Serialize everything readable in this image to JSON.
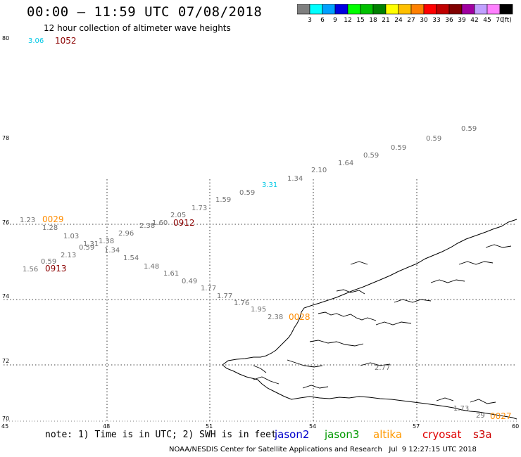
{
  "header": {
    "title": "00:00 – 11:59 UTC 07/08/2018",
    "subtitle": "12 hour collection of altimeter wave heights"
  },
  "colorbar": {
    "colors": [
      "#7f7f7f",
      "#00ffff",
      "#00a0ff",
      "#0000e0",
      "#00ff00",
      "#00c000",
      "#008000",
      "#ffff00",
      "#ffc000",
      "#ff8000",
      "#ff0000",
      "#c00000",
      "#800000",
      "#a000a0",
      "#c0a0ff",
      "#ff80ff",
      "#000000"
    ],
    "labels": [
      "3",
      "6",
      "9",
      "12",
      "15",
      "18",
      "21",
      "24",
      "27",
      "30",
      "33",
      "36",
      "39",
      "42",
      "45",
      "70",
      "(ft)"
    ]
  },
  "axes": {
    "lat_labels": [
      "80",
      "78",
      "76",
      "74",
      "72",
      "70"
    ],
    "lon_labels": [
      "45",
      "48",
      "51",
      "54",
      "57",
      "60"
    ]
  },
  "points": [
    {
      "text": "3.06",
      "color": "#00c8e6"
    },
    {
      "text": "1.23",
      "color": "#707070"
    },
    {
      "text": "1.28",
      "color": "#707070"
    },
    {
      "text": "1.03",
      "color": "#707070"
    },
    {
      "text": "1.31",
      "color": "#707070"
    },
    {
      "text": "0.59",
      "color": "#707070"
    },
    {
      "text": "1.38",
      "color": "#707070"
    },
    {
      "text": "1.34",
      "color": "#707070"
    },
    {
      "text": "2.13",
      "color": "#707070"
    },
    {
      "text": "0.59",
      "color": "#707070"
    },
    {
      "text": "1.56",
      "color": "#707070"
    },
    {
      "text": "2.96",
      "color": "#707070"
    },
    {
      "text": "2.38",
      "color": "#707070"
    },
    {
      "text": "1.60",
      "color": "#707070"
    },
    {
      "text": "2.05",
      "color": "#707070"
    },
    {
      "text": "1.73",
      "color": "#707070"
    },
    {
      "text": "1.59",
      "color": "#707070"
    },
    {
      "text": "0.59",
      "color": "#707070"
    },
    {
      "text": "3.31",
      "color": "#00c8e6"
    },
    {
      "text": "1.34",
      "color": "#707070"
    },
    {
      "text": "2.10",
      "color": "#707070"
    },
    {
      "text": "1.64",
      "color": "#707070"
    },
    {
      "text": "0.59",
      "color": "#707070"
    },
    {
      "text": "0.59",
      "color": "#707070"
    },
    {
      "text": "0.59",
      "color": "#707070"
    },
    {
      "text": "0.59",
      "color": "#707070"
    },
    {
      "text": "1.54",
      "color": "#707070"
    },
    {
      "text": "1.48",
      "color": "#707070"
    },
    {
      "text": "1.61",
      "color": "#707070"
    },
    {
      "text": "0.49",
      "color": "#707070"
    },
    {
      "text": "1.77",
      "color": "#707070"
    },
    {
      "text": "1.77",
      "color": "#707070"
    },
    {
      "text": "1.76",
      "color": "#707070"
    },
    {
      "text": "1.95",
      "color": "#707070"
    },
    {
      "text": "2.38",
      "color": "#707070"
    },
    {
      "text": "2.77",
      "color": "#707070"
    },
    {
      "text": "1.73",
      "color": "#707070"
    },
    {
      "text": "29",
      "color": "#707070"
    }
  ],
  "passes": [
    {
      "text": "1052",
      "color": "#8b0000"
    },
    {
      "text": "0029",
      "color": "#ff8c00"
    },
    {
      "text": "0913",
      "color": "#8b0000"
    },
    {
      "text": "0912",
      "color": "#8b0000"
    },
    {
      "text": "0028",
      "color": "#ff8c00"
    },
    {
      "text": "0027",
      "color": "#ff8c00"
    }
  ],
  "footer": {
    "note": "note: 1) Time is in UTC; 2) SWH is in feet",
    "satellites": [
      {
        "name": "jason2",
        "color": "#0000cc"
      },
      {
        "name": "jason3",
        "color": "#009900"
      },
      {
        "name": "altika",
        "color": "#ff9900"
      },
      {
        "name": "cryosat",
        "color": "#e00000"
      },
      {
        "name": "s3a",
        "color": "#cc0000"
      }
    ],
    "credit": "NOAA/NESDIS Center for Satellite Applications and Research   Jul  9 12:27:15 UTC 2018"
  }
}
